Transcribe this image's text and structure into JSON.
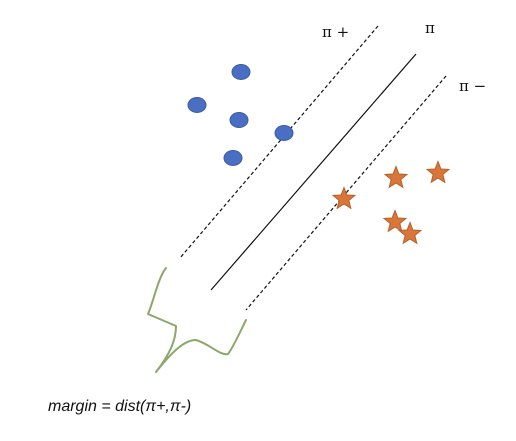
{
  "labels": {
    "pi_plus": "π +",
    "pi": "π",
    "pi_minus": "π −"
  },
  "formula": "margin = dist(π+,π-)",
  "colors": {
    "positive_class": "#4a6fc2",
    "positive_class_edge": "#3a5aa6",
    "negative_class": "#d9773a",
    "negative_class_edge": "#b85e28",
    "brace": "#8aa86a",
    "line": "#111111"
  },
  "classes": [
    {
      "shape": "circle",
      "count": 5
    },
    {
      "shape": "star",
      "count": 5
    }
  ]
}
